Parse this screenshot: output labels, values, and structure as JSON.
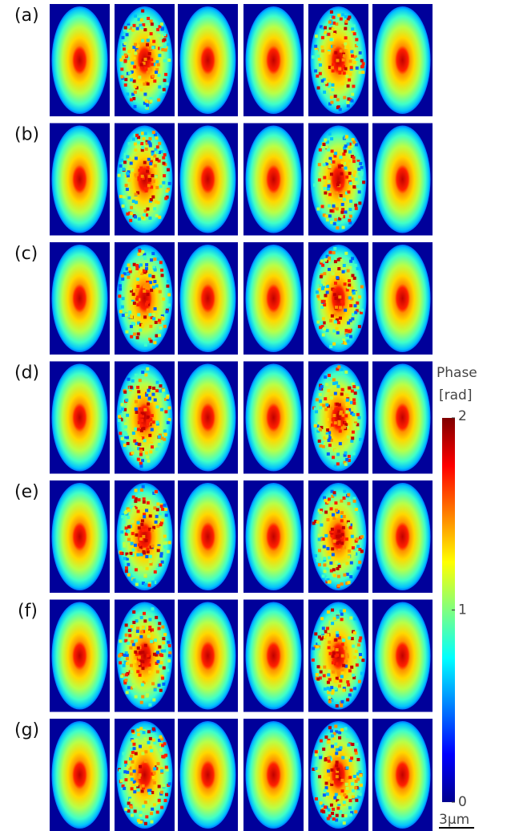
{
  "panels": {
    "row_labels": [
      "(a)",
      "(b)",
      "(c)",
      "(d)",
      "(e)",
      "(f)",
      "(g)"
    ]
  },
  "colorbar": {
    "title": "Phase",
    "unit": "[rad]",
    "lim": [
      0,
      2
    ],
    "ticks": [
      0,
      1,
      2
    ]
  },
  "scale_bar": {
    "label": "3μm"
  }
}
